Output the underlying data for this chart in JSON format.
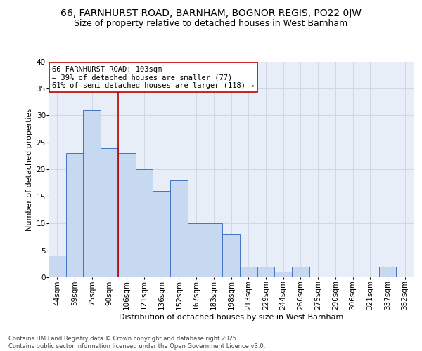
{
  "title1": "66, FARNHURST ROAD, BARNHAM, BOGNOR REGIS, PO22 0JW",
  "title2": "Size of property relative to detached houses in West Barnham",
  "xlabel": "Distribution of detached houses by size in West Barnham",
  "ylabel": "Number of detached properties",
  "categories": [
    "44sqm",
    "59sqm",
    "75sqm",
    "90sqm",
    "106sqm",
    "121sqm",
    "136sqm",
    "152sqm",
    "167sqm",
    "183sqm",
    "198sqm",
    "213sqm",
    "229sqm",
    "244sqm",
    "260sqm",
    "275sqm",
    "290sqm",
    "306sqm",
    "321sqm",
    "337sqm",
    "352sqm"
  ],
  "values": [
    4,
    23,
    31,
    24,
    23,
    20,
    16,
    18,
    10,
    10,
    8,
    2,
    2,
    1,
    2,
    0,
    0,
    0,
    0,
    2,
    0
  ],
  "bar_color": "#c6d9f0",
  "bar_edge_color": "#4472c4",
  "property_line_color": "#c00000",
  "annotation_line1": "66 FARNHURST ROAD: 103sqm",
  "annotation_line2": "← 39% of detached houses are smaller (77)",
  "annotation_line3": "61% of semi-detached houses are larger (118) →",
  "annotation_box_color": "#ffffff",
  "annotation_box_edge_color": "#c00000",
  "ylim": [
    0,
    40
  ],
  "yticks": [
    0,
    5,
    10,
    15,
    20,
    25,
    30,
    35,
    40
  ],
  "grid_color": "#d0d8e8",
  "background_color": "#e8eef8",
  "footer_text": "Contains HM Land Registry data © Crown copyright and database right 2025.\nContains public sector information licensed under the Open Government Licence v3.0.",
  "title_fontsize": 10,
  "subtitle_fontsize": 9,
  "axis_label_fontsize": 8,
  "tick_fontsize": 7.5,
  "annotation_fontsize": 7.5,
  "footer_fontsize": 6
}
